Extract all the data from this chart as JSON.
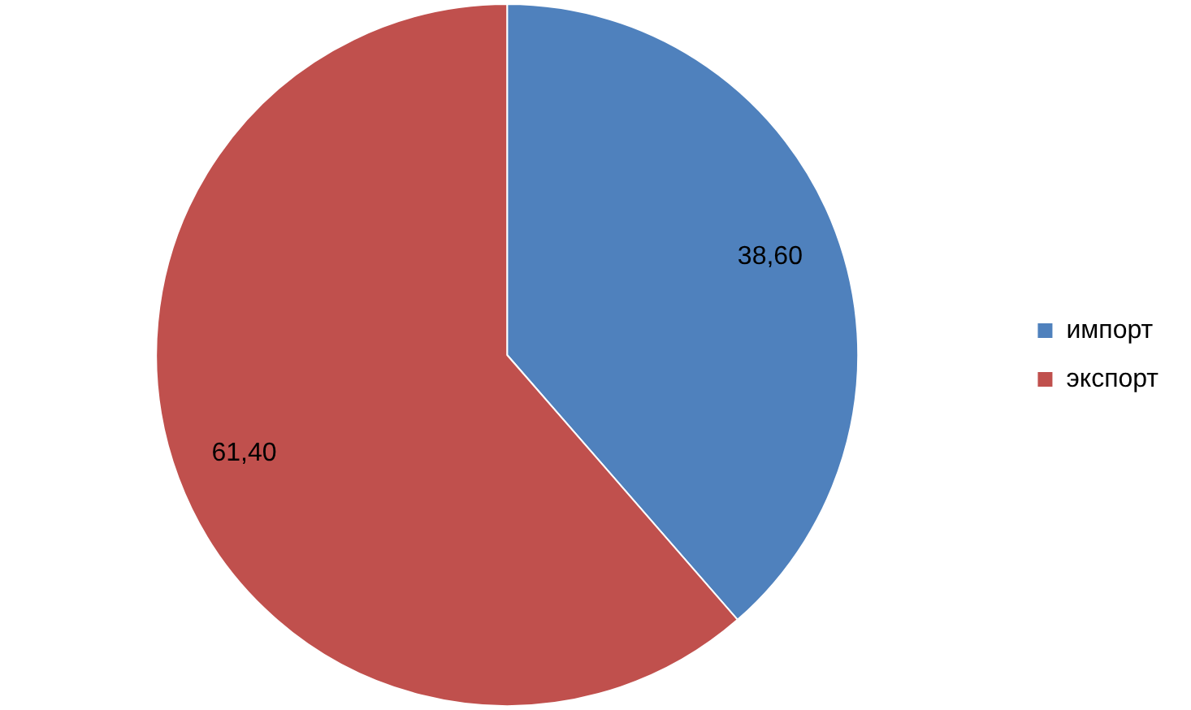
{
  "chart_data": {
    "type": "pie",
    "categories": [
      "импорт",
      "экспорт"
    ],
    "values": [
      38.6,
      61.4
    ],
    "value_labels": [
      "38,60",
      "61,40"
    ],
    "colors": [
      "#4f81bd",
      "#c0504d"
    ],
    "legend": "right"
  }
}
